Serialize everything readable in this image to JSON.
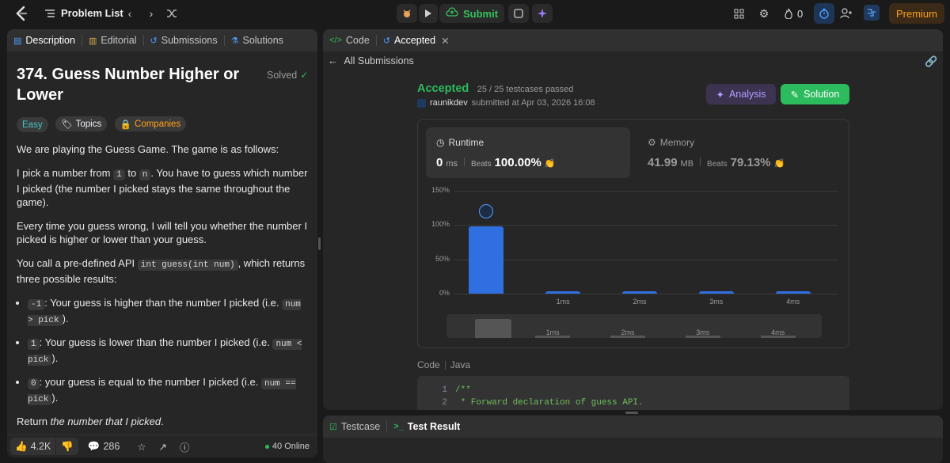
{
  "topbar": {
    "problem_list": "Problem List",
    "submit": "Submit",
    "streak": "0",
    "premium": "Premium"
  },
  "left": {
    "tabs": [
      "Description",
      "Editorial",
      "Submissions",
      "Solutions"
    ],
    "title_line1": "374. Guess Number Higher or",
    "title_line2": "Lower",
    "solved": "Solved",
    "tags": {
      "easy": "Easy",
      "topics": "Topics",
      "companies": "Companies"
    },
    "p1": "We are playing the Guess Game. The game is as follows:",
    "p2a": "I pick a number from ",
    "p2_code1": "1",
    "p2b": " to ",
    "p2_code2": "n",
    "p2c": ". You have to guess which number I picked (the number I picked stays the same throughout the game).",
    "p3": "Every time you guess wrong, I will tell you whether the number I picked is higher or lower than your guess.",
    "p4a": "You call a pre-defined API ",
    "p4_code": "int guess(int num)",
    "p4b": ", which returns three possible results:",
    "bullets": [
      {
        "code": "-1",
        "text": ": Your guess is higher than the number I picked (i.e. ",
        "code2": "num > pick",
        "end": ")."
      },
      {
        "code": "1",
        "text": ": Your guess is lower than the number I picked (i.e. ",
        "code2": "num < pick",
        "end": ")."
      },
      {
        "code": "0",
        "text": ": your guess is equal to the number I picked (i.e. ",
        "code2": "num == pick",
        "end": ")."
      }
    ],
    "return_a": "Return ",
    "return_b": "the number that I picked",
    "return_c": ".",
    "likes": "4.2K",
    "comments": "286",
    "online": "40 Online"
  },
  "right": {
    "tabs": {
      "code": "Code",
      "accepted": "Accepted"
    },
    "back": "All Submissions",
    "status": "Accepted",
    "testcases": "25 / 25 testcases passed",
    "user": "raunikdev",
    "submitted": "submitted at Apr 03, 2026 16:08",
    "analysis": "Analysis",
    "solution": "Solution",
    "runtime_label": "Runtime",
    "runtime_value": "0",
    "runtime_unit": "ms",
    "beats_label": "Beats",
    "runtime_beats": "100.00%",
    "memory_label": "Memory",
    "memory_value": "41.99",
    "memory_unit": "MB",
    "memory_beats": "79.13%",
    "code_label": "Code",
    "lang": "Java",
    "code_lines": [
      {
        "n": "1",
        "text": "/**"
      },
      {
        "n": "2",
        "text": " * Forward declaration of guess API."
      }
    ],
    "bottom_tabs": {
      "testcase": "Testcase",
      "result": "Test Result"
    }
  },
  "chart_data": {
    "type": "bar",
    "categories": [
      "0ms",
      "1ms",
      "2ms",
      "3ms",
      "4ms"
    ],
    "x_tick_labels": [
      "",
      "1ms",
      "2ms",
      "3ms",
      "4ms"
    ],
    "values": [
      98,
      2,
      2,
      2,
      2
    ],
    "y_ticks": [
      "150%",
      "100%",
      "50%",
      "0%"
    ],
    "ylim": [
      0,
      150
    ],
    "grid": true,
    "accent": "#2f6fe0"
  }
}
